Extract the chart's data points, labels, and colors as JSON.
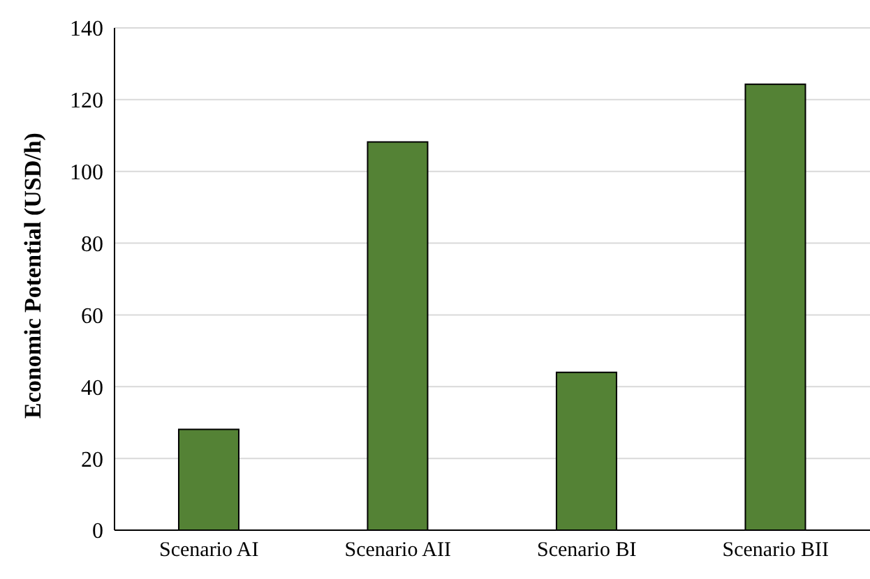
{
  "chart_data": {
    "type": "bar",
    "ylabel": "Economic Potential (USD/h)",
    "categories": [
      "Scenario AI",
      "Scenario AII",
      "Scenario BI",
      "Scenario BII"
    ],
    "values": [
      28.1,
      108.2,
      44,
      124.3
    ],
    "color": "#548235",
    "ylim": [
      0,
      140
    ],
    "yticks": [
      0,
      20,
      40,
      60,
      80,
      100,
      120,
      140
    ],
    "grid": "y"
  }
}
